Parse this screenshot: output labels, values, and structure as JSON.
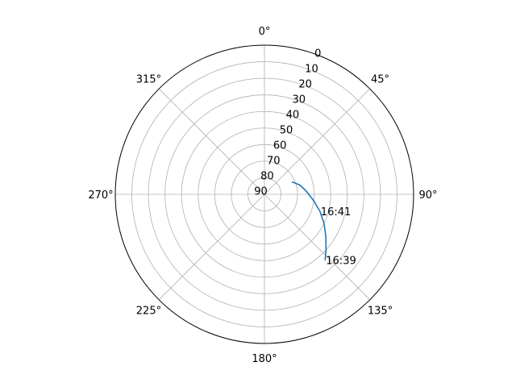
{
  "chart_data": {
    "type": "polar-line",
    "theta_direction": "clockwise",
    "theta_zero": "top",
    "theta_unit": "deg",
    "r_inverted": true,
    "rlim": [
      90,
      0
    ],
    "r_ticks": [
      "0",
      "10",
      "20",
      "30",
      "40",
      "50",
      "60",
      "70",
      "80",
      "90"
    ],
    "r_tick_values": [
      0,
      10,
      20,
      30,
      40,
      50,
      60,
      70,
      80,
      90
    ],
    "theta_ticks": [
      {
        "value": 0,
        "label": "0°"
      },
      {
        "value": 45,
        "label": "45°"
      },
      {
        "value": 90,
        "label": "90°"
      },
      {
        "value": 135,
        "label": "135°"
      },
      {
        "value": 180,
        "label": "180°"
      },
      {
        "value": 225,
        "label": "225°"
      },
      {
        "value": 270,
        "label": "270°"
      },
      {
        "value": 315,
        "label": "315°"
      }
    ],
    "grid": true,
    "series": [
      {
        "color": "#1f77b4",
        "points": [
          {
            "az": 137.2,
            "el": 36.1
          },
          {
            "az": 132.0,
            "el": 40.0
          },
          {
            "az": 124.6,
            "el": 45.0
          },
          {
            "az": 116.0,
            "el": 50.0
          },
          {
            "az": 107.0,
            "el": 55.0
          },
          {
            "az": 97.5,
            "el": 60.0
          },
          {
            "az": 84.7,
            "el": 65.0
          },
          {
            "az": 75.1,
            "el": 68.0
          },
          {
            "az": 66.3,
            "el": 71.6
          }
        ]
      }
    ],
    "annotations": [
      {
        "text": "16:41",
        "az": 107.0,
        "el": 55.0
      },
      {
        "text": "16:39",
        "az": 137.2,
        "el": 36.1
      }
    ]
  }
}
